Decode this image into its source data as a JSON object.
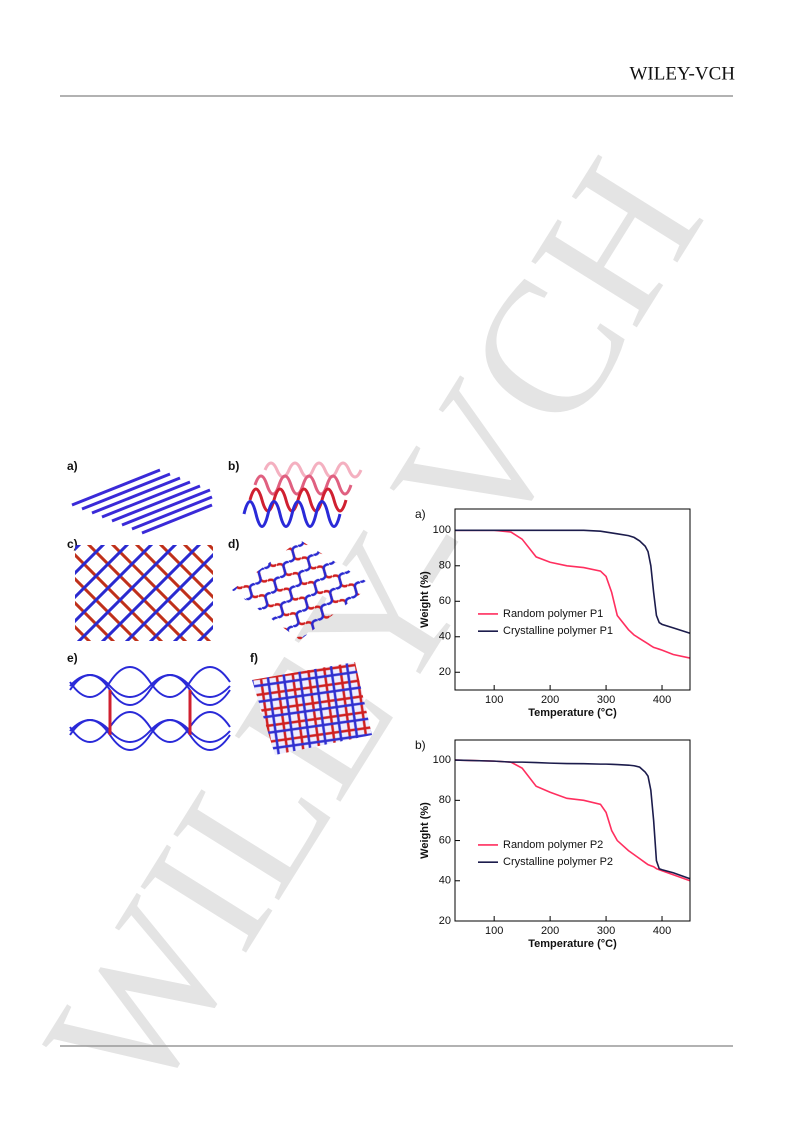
{
  "header": {
    "publisher": "WILEY-VCH"
  },
  "watermark": "WILEY-VCH",
  "figure": {
    "panels": [
      "a)",
      "b)",
      "c)",
      "d)",
      "e)",
      "f)"
    ]
  },
  "chart_data": [
    {
      "type": "line",
      "label": "a)",
      "x_label": "Temperature (°C)",
      "y_label": "Weight (%)",
      "x": [
        30,
        100,
        130,
        150,
        175,
        200,
        230,
        260,
        290,
        300,
        310,
        320,
        340,
        350,
        360,
        370,
        375,
        380,
        385,
        390,
        395,
        400,
        420,
        450
      ],
      "series": [
        {
          "name": "Random polymer P1",
          "color": "#ff2f5f",
          "values": [
            100,
            100,
            99,
            95,
            85,
            82,
            80,
            79,
            77,
            74,
            65,
            52,
            44,
            41,
            39,
            37,
            36,
            35,
            34,
            33.5,
            33,
            32.5,
            30,
            28
          ]
        },
        {
          "name": "Crystalline polymer P1",
          "color": "#1c1c4c",
          "values": [
            100,
            100,
            100,
            100,
            100,
            100,
            100,
            100,
            99.5,
            99,
            98.5,
            98,
            97,
            96,
            94,
            91,
            88,
            80,
            65,
            52,
            48,
            47,
            45,
            42
          ]
        }
      ],
      "xlim": [
        30,
        450
      ],
      "xticks": [
        100,
        200,
        300,
        400
      ],
      "ylim": [
        10,
        112
      ],
      "yticks": [
        20,
        40,
        60,
        80,
        100
      ]
    },
    {
      "type": "line",
      "label": "b)",
      "x_label": "Temperature (°C)",
      "y_label": "Weight (%)",
      "x": [
        30,
        100,
        130,
        150,
        175,
        200,
        230,
        260,
        290,
        300,
        310,
        320,
        340,
        350,
        360,
        370,
        375,
        380,
        385,
        390,
        395,
        400,
        420,
        450
      ],
      "series": [
        {
          "name": "Random polymer P2",
          "color": "#ff2f5f",
          "values": [
            100,
            99.5,
            99,
            96,
            87,
            84,
            81,
            80,
            78,
            74,
            65,
            60,
            55,
            53,
            51,
            49,
            48,
            47.5,
            47,
            46,
            45.5,
            45,
            43,
            40
          ]
        },
        {
          "name": "Crystalline polymer P2",
          "color": "#1c1c4c",
          "values": [
            100,
            99.5,
            99,
            99,
            98.8,
            98.5,
            98.3,
            98.2,
            98,
            98,
            97.9,
            97.8,
            97.5,
            97.2,
            96.5,
            94,
            92,
            85,
            70,
            50,
            46,
            45.5,
            44,
            41
          ]
        }
      ],
      "xlim": [
        30,
        450
      ],
      "xticks": [
        100,
        200,
        300,
        400
      ],
      "ylim": [
        20,
        110
      ],
      "yticks": [
        20,
        40,
        60,
        80,
        100
      ]
    }
  ]
}
